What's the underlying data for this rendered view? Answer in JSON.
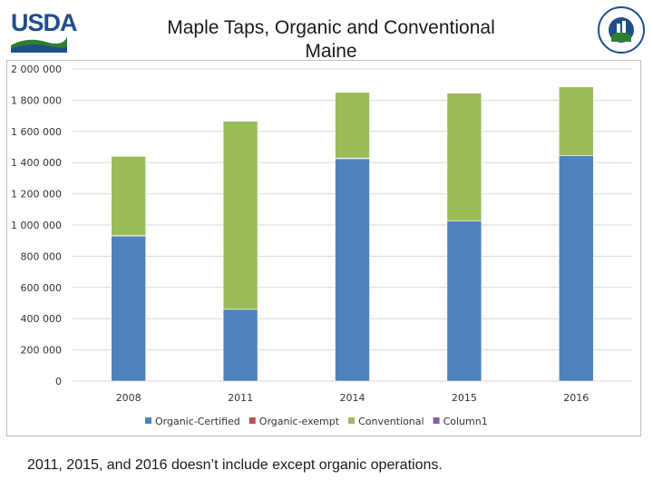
{
  "header": {
    "logo_text": "USDA",
    "county_logo_text": "AGRICULTURE COUNTS"
  },
  "chart_data": {
    "type": "bar",
    "stacked": true,
    "title": "Maple Taps, Organic and Conventional Maine",
    "xlabel": "",
    "ylabel": "",
    "categories": [
      "2008",
      "2011",
      "2014",
      "2015",
      "2016"
    ],
    "series": [
      {
        "name": "Organic-Certified",
        "color": "#4f81bd",
        "values": [
          930000,
          460000,
          1425000,
          1025000,
          1445000
        ]
      },
      {
        "name": "Organic-exempt",
        "color": "#c0504d",
        "values": [
          5000,
          0,
          5000,
          0,
          0
        ]
      },
      {
        "name": "Conventional",
        "color": "#9bbb59",
        "values": [
          505000,
          1205000,
          420000,
          820000,
          440000
        ]
      },
      {
        "name": "Column1",
        "color": "#8064a2",
        "values": [
          0,
          0,
          0,
          0,
          0
        ]
      }
    ],
    "ylim": [
      0,
      2000000
    ],
    "yticks": [
      0,
      200000,
      400000,
      600000,
      800000,
      1000000,
      1200000,
      1400000,
      1600000,
      1800000,
      2000000
    ],
    "ytick_labels": [
      "0",
      "200 000",
      "400 000",
      "600 000",
      "800 000",
      "1 000 000",
      "1 200 000",
      "1 400 000",
      "1 600 000",
      "1 800 000",
      "2 000 000"
    ],
    "grid": true,
    "legend_position": "bottom"
  },
  "footnote": "2011, 2015, and 2016  doesn’t include except organic operations."
}
